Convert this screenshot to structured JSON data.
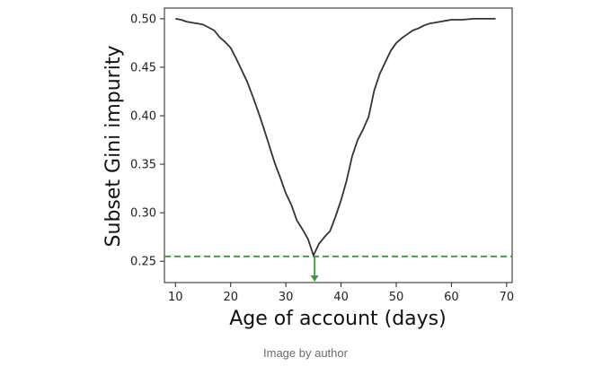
{
  "chart_data": {
    "type": "line",
    "title": "",
    "xlabel": "Age of account (days)",
    "ylabel": "Subset Gini impurity",
    "xlim": [
      8,
      71
    ],
    "ylim": [
      0.228,
      0.511
    ],
    "xticks": [
      10,
      20,
      30,
      40,
      50,
      60,
      70
    ],
    "yticks": [
      0.25,
      0.3,
      0.35,
      0.4,
      0.45,
      0.5
    ],
    "ytick_labels": [
      "0.25",
      "0.30",
      "0.35",
      "0.40",
      "0.45",
      "0.50"
    ],
    "grid": false,
    "series": [
      {
        "color": "#333333",
        "x": [
          10,
          11,
          12,
          13,
          14,
          15,
          16,
          17,
          18,
          19,
          20,
          21,
          22,
          23,
          24,
          25,
          26,
          27,
          28,
          29,
          30,
          31,
          32,
          33,
          34,
          35,
          36,
          37,
          38,
          39,
          40,
          41,
          42,
          43,
          44,
          45,
          46,
          47,
          48,
          49,
          50,
          51,
          52,
          53,
          54,
          55,
          56,
          57,
          58,
          59,
          60,
          62,
          64,
          66,
          68
        ],
        "y": [
          0.5,
          0.499,
          0.497,
          0.496,
          0.495,
          0.494,
          0.491,
          0.488,
          0.481,
          0.476,
          0.47,
          0.459,
          0.447,
          0.435,
          0.42,
          0.404,
          0.387,
          0.369,
          0.351,
          0.336,
          0.32,
          0.308,
          0.292,
          0.283,
          0.273,
          0.256,
          0.268,
          0.275,
          0.281,
          0.296,
          0.313,
          0.333,
          0.358,
          0.375,
          0.386,
          0.399,
          0.426,
          0.443,
          0.455,
          0.467,
          0.475,
          0.48,
          0.484,
          0.488,
          0.49,
          0.493,
          0.495,
          0.496,
          0.497,
          0.498,
          0.499,
          0.499,
          0.5,
          0.5,
          0.5
        ]
      }
    ],
    "reference_line": {
      "y": 0.255,
      "style": "dashed",
      "color": "#3a9a3a"
    },
    "marker_arrow": {
      "x": 35.2,
      "from_y": 0.255,
      "color": "#3a9a3a",
      "direction": "down"
    }
  },
  "caption": "Image by author"
}
